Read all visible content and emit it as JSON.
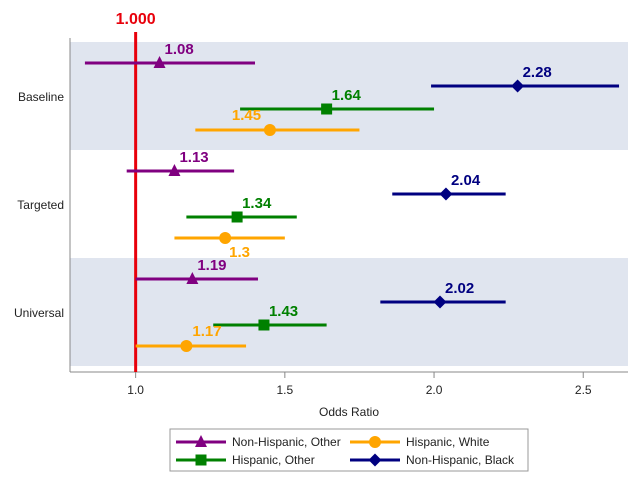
{
  "chart_data": {
    "type": "forest",
    "xlabel": "Odds Ratio",
    "ylabel": "",
    "xlim": [
      0.78,
      2.65
    ],
    "x_ticks": [
      {
        "value": 1.0,
        "label": "1.0"
      },
      {
        "value": 1.5,
        "label": "1.5"
      },
      {
        "value": 2.0,
        "label": "2.0"
      },
      {
        "value": 2.5,
        "label": "2.5"
      }
    ],
    "reference_line": {
      "value": 1.0,
      "label": "1.000",
      "color": "#e8000b"
    },
    "groups": [
      "Baseline",
      "Targeted",
      "Universal"
    ],
    "band_color": "#e0e5ef",
    "banded_groups": [
      "Baseline",
      "Universal"
    ],
    "legend_placement": "bottom",
    "series": [
      {
        "name": "Non-Hispanic, Other",
        "color": "#800080",
        "marker": "triangle",
        "estimates": [
          1.08,
          1.13,
          1.19
        ],
        "labels": [
          "1.08",
          "1.13",
          "1.19"
        ],
        "lower": [
          0.83,
          0.97,
          1.0
        ],
        "upper": [
          1.4,
          1.33,
          1.41
        ]
      },
      {
        "name": "Hispanic, Other",
        "color": "#008000",
        "marker": "square",
        "estimates": [
          1.64,
          1.34,
          1.43
        ],
        "labels": [
          "1.64",
          "1.34",
          "1.43"
        ],
        "lower": [
          1.35,
          1.17,
          1.26
        ],
        "upper": [
          2.0,
          1.54,
          1.64
        ]
      },
      {
        "name": "Hispanic, White",
        "color": "#ffa500",
        "marker": "circle",
        "estimates": [
          1.45,
          1.3,
          1.17
        ],
        "labels": [
          "1.45",
          "1.3",
          "1.17"
        ],
        "lower": [
          1.2,
          1.13,
          1.0
        ],
        "upper": [
          1.75,
          1.5,
          1.37
        ]
      },
      {
        "name": "Non-Hispanic, Black",
        "color": "#000080",
        "marker": "diamond",
        "estimates": [
          2.28,
          2.04,
          2.02
        ],
        "labels": [
          "2.28",
          "2.04",
          "2.02"
        ],
        "lower": [
          1.99,
          1.86,
          1.82
        ],
        "upper": [
          2.62,
          2.24,
          2.24
        ]
      }
    ],
    "legend_order": [
      "Non-Hispanic, Other",
      "Hispanic, White",
      "Hispanic, Other",
      "Non-Hispanic, Black"
    ]
  }
}
